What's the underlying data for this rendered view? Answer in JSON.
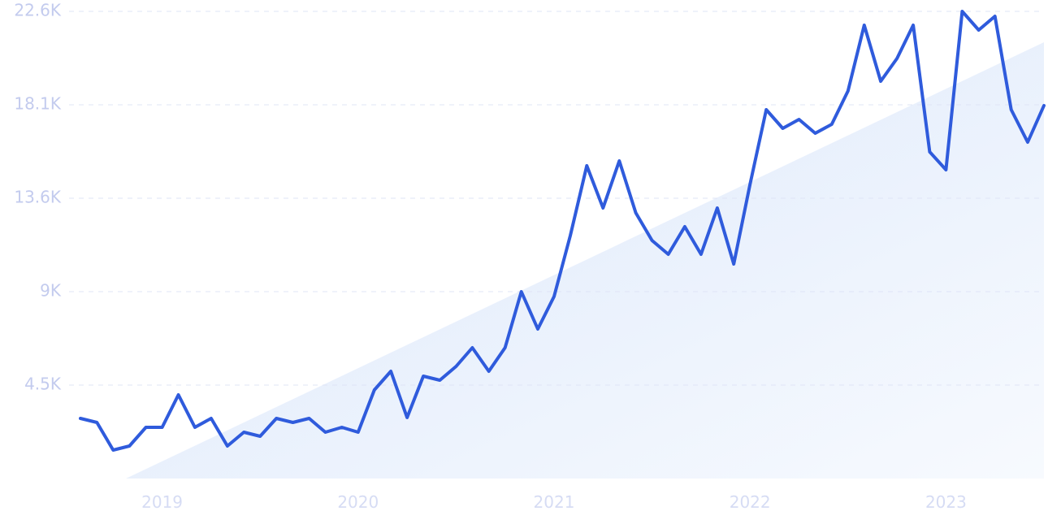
{
  "chart_data": {
    "type": "line",
    "x": [
      2018.583,
      2018.667,
      2018.75,
      2018.833,
      2018.917,
      2019,
      2019.083,
      2019.167,
      2019.25,
      2019.333,
      2019.417,
      2019.5,
      2019.583,
      2019.667,
      2019.75,
      2019.833,
      2019.917,
      2020,
      2020.083,
      2020.167,
      2020.25,
      2020.333,
      2020.417,
      2020.5,
      2020.583,
      2020.667,
      2020.75,
      2020.833,
      2020.917,
      2021,
      2021.083,
      2021.167,
      2021.25,
      2021.333,
      2021.417,
      2021.5,
      2021.583,
      2021.667,
      2021.75,
      2021.833,
      2021.917,
      2022,
      2022.083,
      2022.167,
      2022.25,
      2022.333,
      2022.417,
      2022.5,
      2022.583,
      2022.667,
      2022.75,
      2022.833,
      2022.917,
      2023,
      2023.083,
      2023.167,
      2023.25,
      2023.333,
      2023.417,
      2023.5
    ],
    "values": [
      2909,
      2712,
      1376,
      1572,
      2476,
      2476,
      4048,
      2476,
      2909,
      1572,
      2240,
      2044,
      2909,
      2712,
      2909,
      2240,
      2476,
      2240,
      4284,
      5188,
      2948,
      4952,
      4756,
      5424,
      6328,
      5188,
      6328,
      9040,
      7232,
      8804,
      11752,
      15132,
      13088,
      15368,
      12852,
      11516,
      10848,
      12184,
      10848,
      13088,
      10376,
      14228,
      17844,
      16940,
      17373,
      16704,
      17137,
      18748,
      21932,
      19220,
      20320,
      21932,
      15800,
      14936,
      22600,
      21696,
      22364,
      17844,
      16272,
      18041
    ],
    "color": "#2f5bdc",
    "xlim": [
      2018.583,
      2023.5
    ],
    "xticks": [
      2019,
      2020,
      2021,
      2022,
      2023
    ],
    "ylim": [
      0,
      22600
    ],
    "yticks": [
      {
        "value": 4520,
        "label": "4.5K"
      },
      {
        "value": 9040,
        "label": "9K"
      },
      {
        "value": 13560,
        "label": "13.6K"
      },
      {
        "value": 18080,
        "label": "18.1K"
      },
      {
        "value": 22600,
        "label": "22.6K"
      }
    ],
    "grid": true
  }
}
